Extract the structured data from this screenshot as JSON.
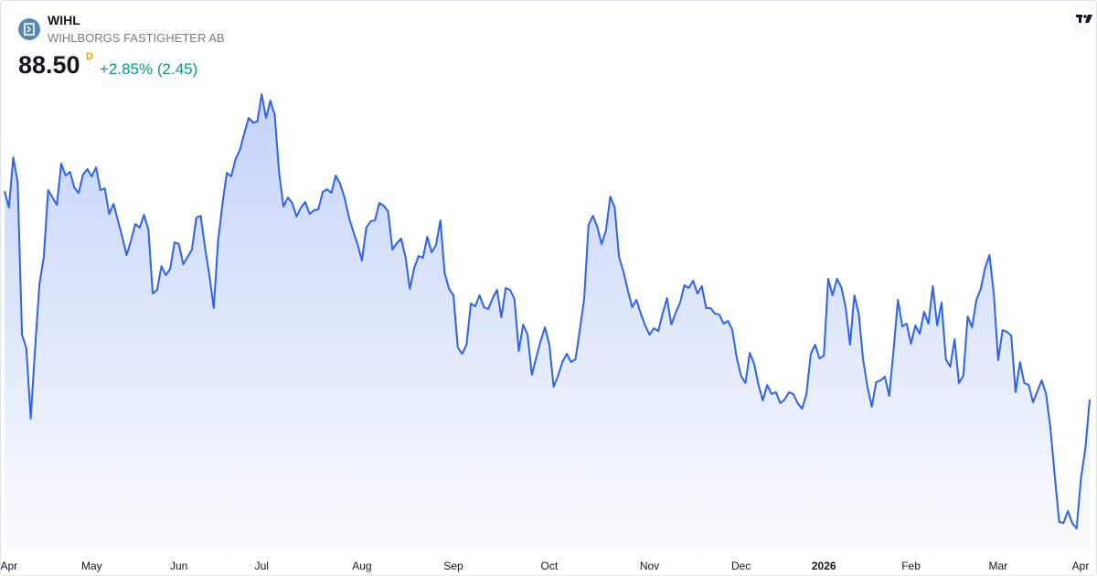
{
  "header": {
    "symbol": "WIHL",
    "name": "WIHLBORGS FASTIGHETER AB",
    "price": "88.50",
    "flag": "D",
    "change": "+2.85% (2.45)"
  },
  "chart_data": {
    "type": "area",
    "color": "#2f62e8",
    "values": [
      99.9,
      99.0,
      101.75,
      100.4,
      92.05,
      91.3,
      87.45,
      91.3,
      94.8,
      96.3,
      99.95,
      99.55,
      99.15,
      101.4,
      100.75,
      100.95,
      100.1,
      99.8,
      100.8,
      101.1,
      100.7,
      101.2,
      99.95,
      100.05,
      98.65,
      99.2,
      98.3,
      97.4,
      96.4,
      97.2,
      98.1,
      97.9,
      98.6,
      97.8,
      94.3,
      94.5,
      95.8,
      95.3,
      95.65,
      97.1,
      97.0,
      95.9,
      96.3,
      96.7,
      98.45,
      98.55,
      96.8,
      95.3,
      93.5,
      97.2,
      99.2,
      100.9,
      100.7,
      101.65,
      102.15,
      103.05,
      103.9,
      103.65,
      103.7,
      105.2,
      103.9,
      104.85,
      104.05,
      100.9,
      99.05,
      99.55,
      99.25,
      98.5,
      99.0,
      99.3,
      98.65,
      98.85,
      98.9,
      99.85,
      100.0,
      99.8,
      100.75,
      100.3,
      99.55,
      98.5,
      97.7,
      97.0,
      96.1,
      97.9,
      98.25,
      98.3,
      99.25,
      99.1,
      98.8,
      96.7,
      97.05,
      97.3,
      96.3,
      94.55,
      95.7,
      96.35,
      96.25,
      97.4,
      96.55,
      96.95,
      98.3,
      95.4,
      94.55,
      94.2,
      91.35,
      91.0,
      91.5,
      93.75,
      93.6,
      94.2,
      93.55,
      93.45,
      94.05,
      94.5,
      93.0,
      94.6,
      94.5,
      94.0,
      91.15,
      92.6,
      92.05,
      89.85,
      90.8,
      91.7,
      92.45,
      91.5,
      89.2,
      89.8,
      90.55,
      91.0,
      90.55,
      90.7,
      92.3,
      94.0,
      98.05,
      98.55,
      97.95,
      97.0,
      97.75,
      99.6,
      99.0,
      96.3,
      95.5,
      94.5,
      93.55,
      93.95,
      93.2,
      92.55,
      92.05,
      92.4,
      92.25,
      93.2,
      94.05,
      92.6,
      93.25,
      93.8,
      94.75,
      94.6,
      95.0,
      94.3,
      94.7,
      93.5,
      93.5,
      93.2,
      93.15,
      92.65,
      92.8,
      92.3,
      90.8,
      89.8,
      89.4,
      91.05,
      90.45,
      89.3,
      88.45,
      89.3,
      88.8,
      88.9,
      88.3,
      88.5,
      88.9,
      88.8,
      88.3,
      88.0,
      88.8,
      91.0,
      91.5,
      90.75,
      90.9,
      95.1,
      94.2,
      95.1,
      94.65,
      93.55,
      91.5,
      94.2,
      93.2,
      90.7,
      89.2,
      88.1,
      89.45,
      89.55,
      89.75,
      88.7,
      91.2,
      93.95,
      92.5,
      92.65,
      91.55,
      92.55,
      92.1,
      93.3,
      92.65,
      94.7,
      92.55,
      93.8,
      90.7,
      90.3,
      91.8,
      89.4,
      89.8,
      93.05,
      92.45,
      93.95,
      94.55,
      95.7,
      96.4,
      94.3,
      90.65,
      92.3,
      92.2,
      92.0,
      88.9,
      90.55,
      89.4,
      89.3,
      88.35,
      88.95,
      89.55,
      88.8,
      86.9,
      84.3,
      81.8,
      81.75,
      82.4,
      81.75,
      81.45,
      84.2,
      85.8,
      88.5
    ],
    "xticks": [
      {
        "value": 1,
        "label": "Apr"
      },
      {
        "value": 20,
        "label": "May"
      },
      {
        "value": 40,
        "label": "Jun"
      },
      {
        "value": 59,
        "label": "Jul"
      },
      {
        "value": 82,
        "label": "Aug"
      },
      {
        "value": 103,
        "label": "Sep"
      },
      {
        "value": 125,
        "label": "Oct"
      },
      {
        "value": 148,
        "label": "Nov"
      },
      {
        "value": 169,
        "label": "Dec"
      },
      {
        "value": 188,
        "label": "2026"
      },
      {
        "value": 208,
        "label": "Feb"
      },
      {
        "value": 228,
        "label": "Mar"
      },
      {
        "value": 249,
        "label": "Apr"
      }
    ]
  }
}
